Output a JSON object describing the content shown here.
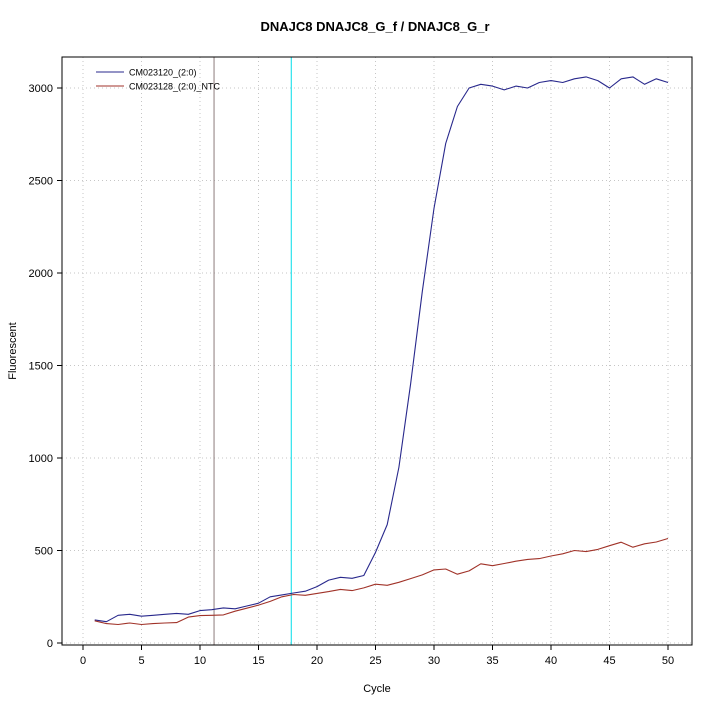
{
  "chart": {
    "title": "DNAJC8  DNAJC8_G_f / DNAJC8_G_r",
    "xlabel": "Cycle",
    "ylabel": "Fluorescent"
  },
  "chart_data": {
    "type": "line",
    "title": "DNAJC8  DNAJC8_G_f / DNAJC8_G_r",
    "xlabel": "Cycle",
    "ylabel": "Fluorescent",
    "xlim": [
      0,
      50
    ],
    "ylim": [
      0,
      3150
    ],
    "x_ticks": [
      0,
      5,
      10,
      15,
      20,
      25,
      30,
      35,
      40,
      45,
      50
    ],
    "y_ticks": [
      0,
      500,
      1000,
      1500,
      2000,
      2500,
      3000
    ],
    "grid": "dotted",
    "grid_color": "#c6c6c6",
    "legend_position": "top-left",
    "x": [
      1,
      2,
      3,
      4,
      5,
      6,
      7,
      8,
      9,
      10,
      11,
      12,
      13,
      14,
      15,
      16,
      17,
      18,
      19,
      20,
      21,
      22,
      23,
      24,
      25,
      26,
      27,
      28,
      29,
      30,
      31,
      32,
      33,
      34,
      35,
      36,
      37,
      38,
      39,
      40,
      41,
      42,
      43,
      44,
      45,
      46,
      47,
      48,
      49,
      50
    ],
    "series": [
      {
        "name": "CM023120_(2:0)",
        "color": "#28288c",
        "values": [
          125,
          115,
          150,
          155,
          145,
          150,
          155,
          160,
          155,
          175,
          180,
          190,
          185,
          200,
          215,
          250,
          260,
          270,
          280,
          305,
          340,
          355,
          350,
          365,
          490,
          640,
          950,
          1400,
          1900,
          2350,
          2700,
          2900,
          3000,
          3020,
          3010,
          2990,
          3010,
          3000,
          3030,
          3040,
          3030,
          3050,
          3060,
          3040,
          3000,
          3050,
          3060,
          3020,
          3050,
          3030
        ]
      },
      {
        "name": "CM023128_(2:0)_NTC",
        "color": "#a03228",
        "values": [
          120,
          105,
          100,
          108,
          100,
          105,
          108,
          110,
          140,
          148,
          150,
          152,
          172,
          188,
          205,
          225,
          250,
          262,
          258,
          268,
          278,
          290,
          283,
          298,
          318,
          312,
          328,
          348,
          368,
          395,
          400,
          372,
          390,
          428,
          418,
          430,
          442,
          452,
          456,
          470,
          482,
          500,
          494,
          506,
          526,
          545,
          518,
          536,
          546,
          565
        ]
      }
    ],
    "vlines": [
      {
        "x": 17.8,
        "color": "#00dde8",
        "name": "threshold-cycle-line"
      },
      {
        "x": 11.2,
        "color": "#8c7c7c",
        "name": "baseline-end-line"
      }
    ]
  }
}
